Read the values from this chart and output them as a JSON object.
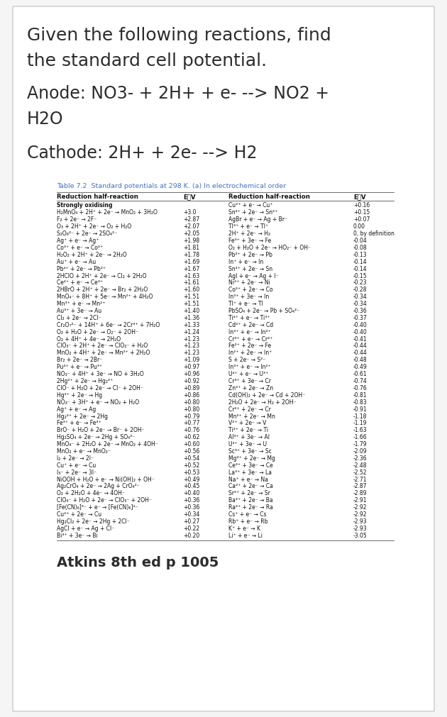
{
  "title_line1": "Given the following reactions, find",
  "title_line2": "the standard cell potential.",
  "anode_line1": "Anode: NO3- + 2H+ + e- --> NO2 +",
  "anode_line2": "H2O",
  "cathode_line": "Cathode: 2H+ + 2e- --> H2",
  "table_title": "Table 7.2  Standard potentials at 298 K. (a) In electrochemical order",
  "left_col": [
    [
      "Strongly oxidising",
      ""
    ],
    [
      "H₂MnO₄ + 2H⁺ + 2e⁻ → MnO₂ + 3H₂O",
      "+3.0"
    ],
    [
      "F₂ + 2e⁻ → 2F⁻",
      "+2.87"
    ],
    [
      "O₃ + 2H⁺ + 2e⁻ → O₂ + H₂O",
      "+2.07"
    ],
    [
      "S₂O₈²⁻ + 2e⁻ → 2SO₄²⁻",
      "+2.05"
    ],
    [
      "Ag⁺ + e⁻ → Ag⁺",
      "+1.98"
    ],
    [
      "Co³⁺ + e⁻ → Co²⁺",
      "+1.81"
    ],
    [
      "H₂O₂ + 2H⁺ + 2e⁻ → 2H₂O",
      "+1.78"
    ],
    [
      "Au⁺ + e⁻ → Au",
      "+1.69"
    ],
    [
      "Pb⁴⁺ + 2e⁻ → Pb²⁺",
      "+1.67"
    ],
    [
      "2HClO + 2H⁺ + 2e⁻ → Cl₂ + 2H₂O",
      "+1.63"
    ],
    [
      "Ce⁴⁺ + e⁻ → Ce³⁺",
      "+1.61"
    ],
    [
      "2HBrO + 2H⁺ + 2e⁻ → Br₂ + 2H₂O",
      "+1.60"
    ],
    [
      "MnO₄⁻ + 8H⁺ + 5e⁻ → Mn²⁺ + 4H₂O",
      "+1.51"
    ],
    [
      "Mn³⁺ + e⁻ → Mn²⁺",
      "+1.51"
    ],
    [
      "Au³⁺ + 3e⁻ → Au",
      "+1.40"
    ],
    [
      "Cl₂ + 2e⁻ → 2Cl⁻",
      "+1.36"
    ],
    [
      "Cr₂O₇²⁻ + 14H⁺ + 6e⁻ → 2Cr³⁺ + 7H₂O",
      "+1.33"
    ],
    [
      "O₂ + H₂O + 2e⁻ → O₂⁻ + 2OH⁻",
      "+1.24"
    ],
    [
      "O₂ + 4H⁺ + 4e⁻ → 2H₂O",
      "+1.23"
    ],
    [
      "ClO₃⁻ + 2H⁺ + 2e⁻ → ClO₂⁻ + H₂O",
      "+1.23"
    ],
    [
      "MnO₂ + 4H⁺ + 2e⁻ → Mn²⁺ + 2H₂O",
      "+1.23"
    ],
    [
      "Br₂ + 2e⁻ → 2Br⁻",
      "+1.09"
    ],
    [
      "Pu⁴⁺ + e⁻ → Pu³⁺",
      "+0.97"
    ],
    [
      "NO₃⁻ + 4H⁺ + 3e⁻ → NO + 3H₂O",
      "+0.96"
    ],
    [
      "2Hg²⁺ + 2e⁻ → Hg₂²⁺",
      "+0.92"
    ],
    [
      "ClO⁻ + H₂O + 2e⁻ → Cl⁻ + 2OH⁻",
      "+0.89"
    ],
    [
      "Hg²⁺ + 2e⁻ → Hg",
      "+0.86"
    ],
    [
      "NO₃⁻ + 3H⁺ + e⁻ → NO₂ + H₂O",
      "+0.80"
    ],
    [
      "Ag⁺ + e⁻ → Ag",
      "+0.80"
    ],
    [
      "Hg₂²⁺ + 2e⁻ → 2Hg",
      "+0.79"
    ],
    [
      "Fe³⁺ + e⁻ → Fe²⁺",
      "+0.77"
    ],
    [
      "BrO⁻ + H₂O + 2e⁻ → Br⁻ + 2OH⁻",
      "+0.76"
    ],
    [
      "Hg₂SO₄ + 2e⁻ → 2Hg + SO₄²⁻",
      "+0.62"
    ],
    [
      "MnO₄⁻ + 2H₂O + 2e⁻ → MnO₂ + 4OH⁻",
      "+0.60"
    ],
    [
      "MnO₂ + e⁻ → MnO₂⁻",
      "+0.56"
    ],
    [
      "I₂ + 2e⁻ → 2I⁻",
      "+0.54"
    ],
    [
      "Cu⁺ + e⁻ → Cu",
      "+0.52"
    ],
    [
      "I₃⁻ + 2e⁻ → 3I⁻",
      "+0.53"
    ],
    [
      "NiOOH + H₂O + e⁻ → Ni(OH)₂ + OH⁻",
      "+0.49"
    ],
    [
      "Ag₂CrO₄ + 2e⁻ → 2Ag + CrO₄²⁻",
      "+0.45"
    ],
    [
      "O₂ + 2H₂O + 4e⁻ → 4OH⁻",
      "+0.40"
    ],
    [
      "ClO₄⁻ + H₂O + 2e⁻ → ClO₃⁻ + 2OH⁻",
      "+0.36"
    ],
    [
      "[Fe(CN)₆]³⁻ + e⁻ → [Fe(CN)₆]⁴⁻",
      "+0.36"
    ],
    [
      "Cu²⁺ + 2e⁻ → Cu",
      "+0.34"
    ],
    [
      "Hg₂Cl₂ + 2e⁻ → 2Hg + 2Cl⁻",
      "+0.27"
    ],
    [
      "AgCl + e⁻ → Ag + Cl⁻",
      "+0.22"
    ],
    [
      "Bi³⁺ + 3e⁻ → Bi",
      "+0.20"
    ]
  ],
  "right_col": [
    [
      "Cu²⁺ + e⁻ → Cu⁺",
      "+0.16"
    ],
    [
      "Sn⁴⁺ + 2e⁻ → Sn²⁺",
      "+0.15"
    ],
    [
      "AgBr + e⁻ → Ag + Br⁻",
      "+0.07"
    ],
    [
      "Tl³⁺ + e⁻ → Tl⁺",
      "0.00"
    ],
    [
      "2H⁺ + 2e⁻ → H₂",
      "0, by definition"
    ],
    [
      "Fe³⁺ + 3e⁻ → Fe",
      "-0.04"
    ],
    [
      "O₂ + H₂O + 2e⁻ → HO₂⁻ + OH⁻",
      "-0.08"
    ],
    [
      "Pb²⁺ + 2e⁻ → Pb",
      "-0.13"
    ],
    [
      "In⁺ + e⁻ → In",
      "-0.14"
    ],
    [
      "Sn²⁺ + 2e⁻ → Sn",
      "-0.14"
    ],
    [
      "AgI + e⁻ → Ag + I⁻",
      "-0.15"
    ],
    [
      "Ni²⁺ + 2e⁻ → Ni",
      "-0.23"
    ],
    [
      "Co²⁺ + 2e⁻ → Co",
      "-0.28"
    ],
    [
      "In³⁺ + 3e⁻ → In",
      "-0.34"
    ],
    [
      "Tl⁺ + e⁻ → Tl",
      "-0.34"
    ],
    [
      "PbSO₄ + 2e⁻ → Pb + SO₄²⁻",
      "-0.36"
    ],
    [
      "Ti⁴⁺ + e⁻ → Ti³⁺",
      "-0.37"
    ],
    [
      "Cd²⁺ + 2e⁻ → Cd",
      "-0.40"
    ],
    [
      "In³⁺ + e⁻ → In²⁺",
      "-0.40"
    ],
    [
      "Cr³⁺ + e⁻ → Cr²⁺",
      "-0.41"
    ],
    [
      "Fe²⁺ + 2e⁻ → Fe",
      "-0.44"
    ],
    [
      "In²⁺ + 2e⁻ → In⁺",
      "-0.44"
    ],
    [
      "S + 2e⁻ → S²⁻",
      "-0.48"
    ],
    [
      "In³⁺ + e⁻ → In²⁺",
      "-0.49"
    ],
    [
      "U⁴⁺ + e⁻ → U³⁺",
      "-0.61"
    ],
    [
      "Cr³⁺ + 3e⁻ → Cr",
      "-0.74"
    ],
    [
      "Zn²⁺ + 2e⁻ → Zn",
      "-0.76"
    ],
    [
      "Cd(OH)₂ + 2e⁻ → Cd + 2OH⁻",
      "-0.81"
    ],
    [
      "2H₂O + 2e⁻ → H₂ + 2OH⁻",
      "-0.83"
    ],
    [
      "Cr²⁺ + 2e⁻ → Cr",
      "-0.91"
    ],
    [
      "Mn²⁺ + 2e⁻ → Mn",
      "-1.18"
    ],
    [
      "V²⁺ + 2e⁻ → V",
      "-1.19"
    ],
    [
      "Ti²⁺ + 2e⁻ → Ti",
      "-1.63"
    ],
    [
      "Al³⁺ + 3e⁻ → Al",
      "-1.66"
    ],
    [
      "U³⁺ + 3e⁻ → U",
      "-1.79"
    ],
    [
      "Sc³⁺ + 3e⁻ → Sc",
      "-2.09"
    ],
    [
      "Mg²⁺ + 2e⁻ → Mg",
      "-2.36"
    ],
    [
      "Ce³⁺ + 3e⁻ → Ce",
      "-2.48"
    ],
    [
      "La³⁺ + 3e⁻ → La",
      "-2.52"
    ],
    [
      "Na⁺ + e⁻ → Na",
      "-2.71"
    ],
    [
      "Ca²⁺ + 2e⁻ → Ca",
      "-2.87"
    ],
    [
      "Sr²⁺ + 2e⁻ → Sr",
      "-2.89"
    ],
    [
      "Ba²⁺ + 2e⁻ → Ba",
      "-2.91"
    ],
    [
      "Ra²⁺ + 2e⁻ → Ra",
      "-2.92"
    ],
    [
      "Cs⁺ + e⁻ → Cs",
      "-2.92"
    ],
    [
      "Rb⁺ + e⁻ → Rb",
      "-2.93"
    ],
    [
      "K⁺ + e⁻ → K",
      "-2.93"
    ],
    [
      "Li⁺ + e⁻ → Li",
      "-3.05"
    ]
  ],
  "footer": "Atkins 8th ed p 1005",
  "bg_color": "#f5f5f5",
  "text_color": "#2c2c2c",
  "table_title_color": "#4472c4",
  "title_fontsize": 18,
  "anode_fontsize": 17,
  "cathode_fontsize": 17,
  "table_fontsize": 5.5,
  "footer_fontsize": 14
}
